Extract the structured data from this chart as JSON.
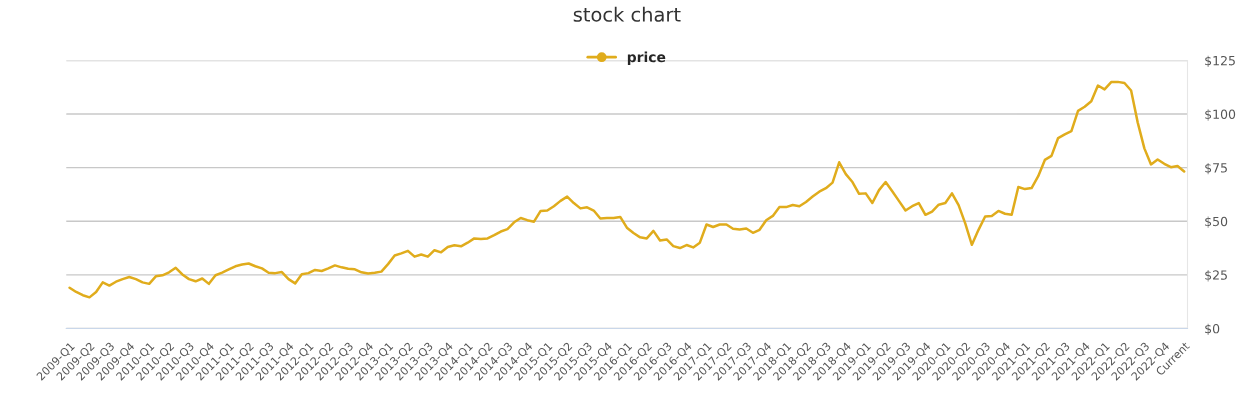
{
  "chart_data": {
    "type": "line",
    "title": "stock chart",
    "categories": [
      "2009-Q1",
      null,
      null,
      "2009-Q2",
      null,
      null,
      "2009-Q3",
      null,
      null,
      "2009-Q4",
      null,
      null,
      "2010-Q1",
      null,
      null,
      "2010-Q2",
      null,
      null,
      "2010-Q3",
      null,
      null,
      "2010-Q4",
      null,
      null,
      "2011-Q1",
      null,
      null,
      "2011-Q2",
      null,
      null,
      "2011-Q3",
      null,
      null,
      "2011-Q4",
      null,
      null,
      "2012-Q1",
      null,
      null,
      "2012-Q2",
      null,
      null,
      "2012-Q3",
      null,
      null,
      "2012-Q4",
      null,
      null,
      "2013-Q1",
      null,
      null,
      "2013-Q2",
      null,
      null,
      "2013-Q3",
      null,
      null,
      "2013-Q4",
      null,
      null,
      "2014-Q1",
      null,
      null,
      "2014-Q2",
      null,
      null,
      "2014-Q3",
      null,
      null,
      "2014-Q4",
      null,
      null,
      "2015-Q1",
      null,
      null,
      "2015-Q2",
      null,
      null,
      "2015-Q3",
      null,
      null,
      "2015-Q4",
      null,
      null,
      "2016-Q1",
      null,
      null,
      "2016-Q2",
      null,
      null,
      "2016-Q3",
      null,
      null,
      "2016-Q4",
      null,
      null,
      "2017-Q1",
      null,
      null,
      "2017-Q2",
      null,
      null,
      "2017-Q3",
      null,
      null,
      "2017-Q4",
      null,
      null,
      "2018-Q1",
      null,
      null,
      "2018-Q2",
      null,
      null,
      "2018-Q3",
      null,
      null,
      "2018-Q4",
      null,
      null,
      "2019-Q1",
      null,
      null,
      "2019-Q2",
      null,
      null,
      "2019-Q3",
      null,
      null,
      "2019-Q4",
      null,
      null,
      "2020-Q1",
      null,
      null,
      "2020-Q2",
      null,
      null,
      "2020-Q3",
      null,
      null,
      "2020-Q4",
      null,
      null,
      "2021-Q1",
      null,
      null,
      "2021-Q2",
      null,
      null,
      "2021-Q3",
      null,
      null,
      "2021-Q4",
      null,
      null,
      "2022-Q1",
      null,
      null,
      "2022-Q2",
      null,
      null,
      "2022-Q3",
      null,
      null,
      "2022-Q4",
      null,
      null,
      "Current"
    ],
    "series": [
      {
        "name": "price",
        "color": "#e0ac1c",
        "values": [
          19,
          17,
          15.5,
          14.5,
          17,
          21.5,
          20,
          21.8,
          23,
          24,
          23,
          21.5,
          20.8,
          24.3,
          24.8,
          26.2,
          28.3,
          25.2,
          23,
          22,
          23.3,
          20.8,
          24.8,
          26,
          27.5,
          29,
          29.8,
          30.3,
          29,
          28,
          26,
          25.8,
          26.3,
          23,
          21,
          25.3,
          25.8,
          27.3,
          26.8,
          28,
          29.4,
          28.5,
          27.8,
          27.6,
          26.2,
          25.6,
          26,
          26.5,
          30,
          34,
          35,
          36.2,
          33.5,
          34.5,
          33.5,
          36.5,
          35.5,
          38,
          38.8,
          38.3,
          40,
          42,
          41.7,
          42,
          43.5,
          45.2,
          46.3,
          49.5,
          51.5,
          50.5,
          49.8,
          54.8,
          55,
          57,
          59.5,
          61.5,
          58.5,
          56,
          56.5,
          55,
          51.3,
          51.5,
          51.5,
          52,
          47,
          44.5,
          42.5,
          42,
          45.5,
          41,
          41.5,
          38.4,
          37.5,
          38.9,
          37.8,
          40,
          48.5,
          47.3,
          48.5,
          48.5,
          46.5,
          46.2,
          46.6,
          44.6,
          46,
          50.5,
          52.5,
          56.6,
          56.6,
          57.6,
          57,
          59,
          61.5,
          63.8,
          65.4,
          68,
          77.5,
          72,
          68.3,
          62.8,
          63,
          58.5,
          64.5,
          68.3,
          64,
          59.5,
          55,
          57,
          58.5,
          53,
          54.5,
          57.7,
          58.5,
          63,
          57.5,
          49,
          39,
          46,
          52.2,
          52.5,
          54.8,
          53.5,
          53,
          66,
          65,
          65.5,
          71,
          78.6,
          80.5,
          88.8,
          90.5,
          92,
          101.5,
          103.4,
          106,
          113.3,
          111.5,
          114.9,
          115,
          114.5,
          111,
          96,
          84,
          76.5,
          78.8,
          76.8,
          75.2,
          75.8,
          73.2
        ]
      }
    ],
    "ylim": [
      0,
      125
    ],
    "yticks": [
      {
        "value": 0,
        "label": "$0"
      },
      {
        "value": 25,
        "label": "$25"
      },
      {
        "value": 50,
        "label": "$50"
      },
      {
        "value": 75,
        "label": "$75"
      },
      {
        "value": 100,
        "label": "$100"
      },
      {
        "value": 125,
        "label": "$125"
      }
    ],
    "grid": "y",
    "legend": "top",
    "marker": "none",
    "line_style": "solid"
  }
}
